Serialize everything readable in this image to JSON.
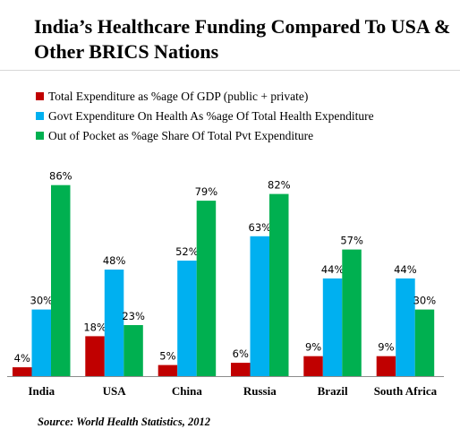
{
  "title": "India’s Healthcare Funding Compared To USA & Other BRICS Nations",
  "source": "Source: World Health Statistics,  2012",
  "chart_data": {
    "type": "bar",
    "title": "India’s Healthcare Funding Compared To USA & Other BRICS Nations",
    "categories": [
      "India",
      "USA",
      "China",
      "Russia",
      "Brazil",
      "South Africa"
    ],
    "series": [
      {
        "name": "Total Expenditure as %age Of GDP (public + private)",
        "color": "#c00000",
        "values": [
          4,
          18,
          5,
          6,
          9,
          9
        ],
        "labels": [
          "4%",
          "18%",
          "5%",
          "6%",
          "9%",
          "9%"
        ]
      },
      {
        "name": "Govt Expenditure On Health As %age Of Total Health Expenditure",
        "color": "#00b0f0",
        "values": [
          30,
          48,
          52,
          63,
          44,
          44
        ],
        "labels": [
          "30%",
          "48%",
          "52%",
          "63%",
          "44%",
          "44%"
        ]
      },
      {
        "name": "Out of Pocket as %age Share Of Total Pvt Expenditure",
        "color": "#00b050",
        "values": [
          86,
          23,
          79,
          82,
          57,
          30
        ],
        "labels": [
          "86%",
          "23%",
          "79%",
          "82%",
          "57%",
          "30%"
        ]
      }
    ],
    "ylim": [
      0,
      100
    ],
    "legend": "top-left",
    "grid": false
  }
}
